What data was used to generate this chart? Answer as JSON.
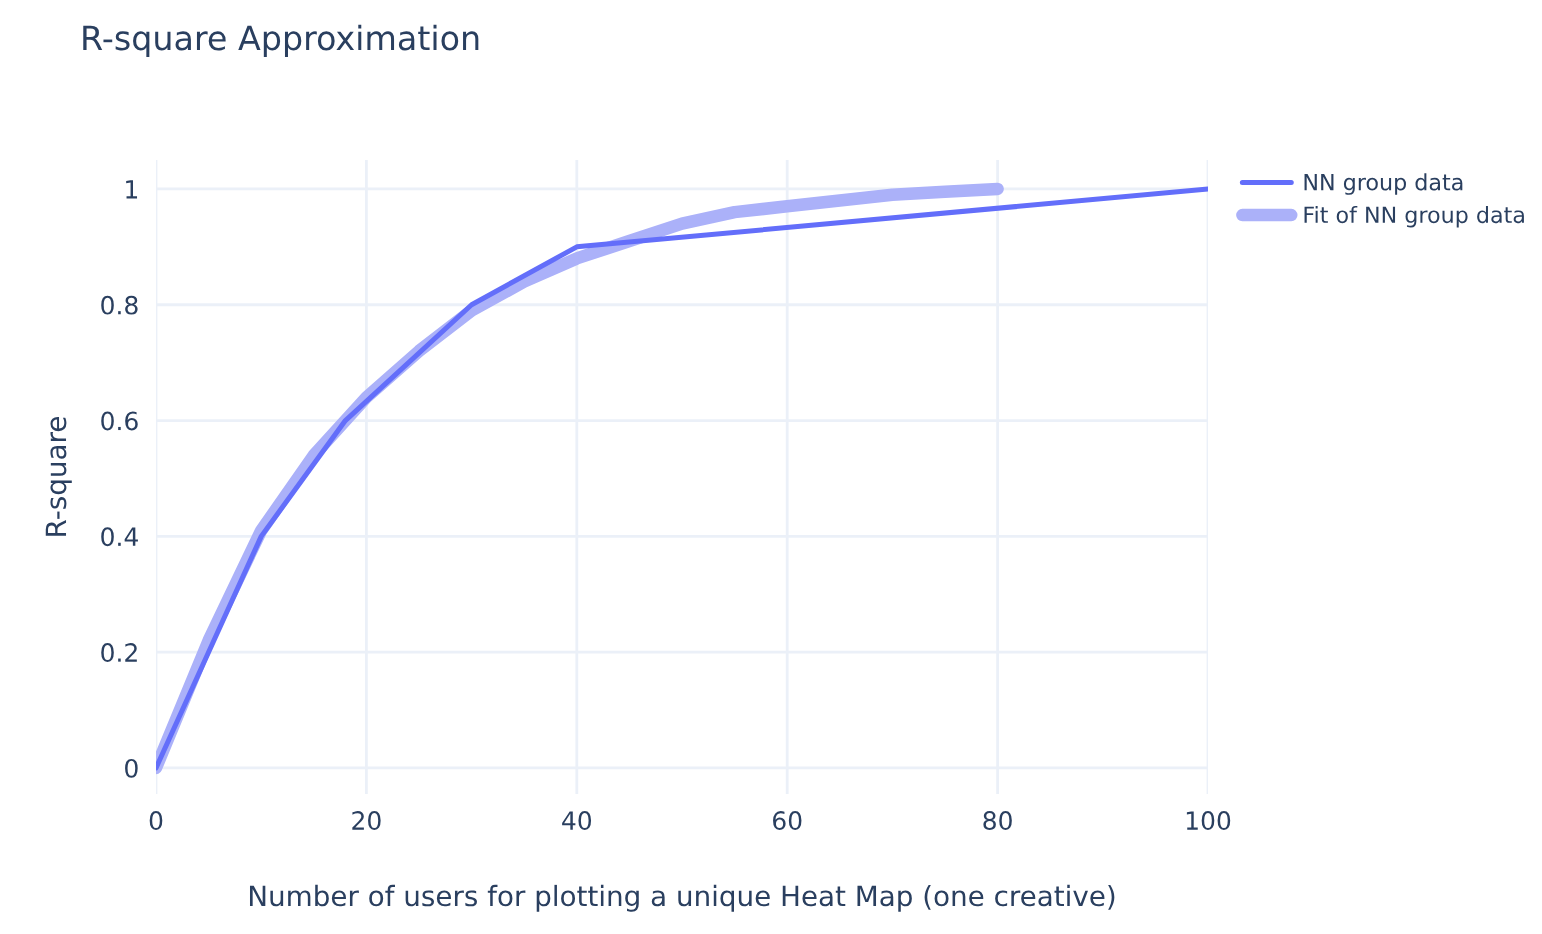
{
  "chart_data": {
    "type": "line",
    "title": "R-square Approximation",
    "xlabel": "Number of users for plotting a unique Heat Map (one creative)",
    "ylabel": "R-square",
    "series": [
      {
        "name": "NN group data",
        "color": "#636efa",
        "x": [
          0,
          10,
          18,
          30,
          40,
          100
        ],
        "values": [
          0,
          0.4,
          0.6,
          0.8,
          0.9,
          1.0
        ]
      },
      {
        "name": "Fit of NN group data",
        "color": "#abb1f9",
        "x": [
          0,
          5,
          10,
          15,
          20,
          25,
          30,
          35,
          40,
          45,
          50,
          55,
          60,
          65,
          70,
          75,
          80
        ],
        "values": [
          0,
          0.22,
          0.41,
          0.54,
          0.64,
          0.72,
          0.79,
          0.84,
          0.88,
          0.91,
          0.94,
          0.96,
          0.97,
          0.98,
          0.99,
          0.995,
          1.0
        ]
      }
    ],
    "xlim": [
      0,
      100
    ],
    "xticks": [
      0,
      20,
      40,
      60,
      80,
      100
    ],
    "ylim": [
      -0.045,
      1.05
    ],
    "yticks": [
      0,
      0.2,
      0.4,
      0.6,
      0.8,
      1
    ],
    "grid": true,
    "legend": "top right"
  }
}
